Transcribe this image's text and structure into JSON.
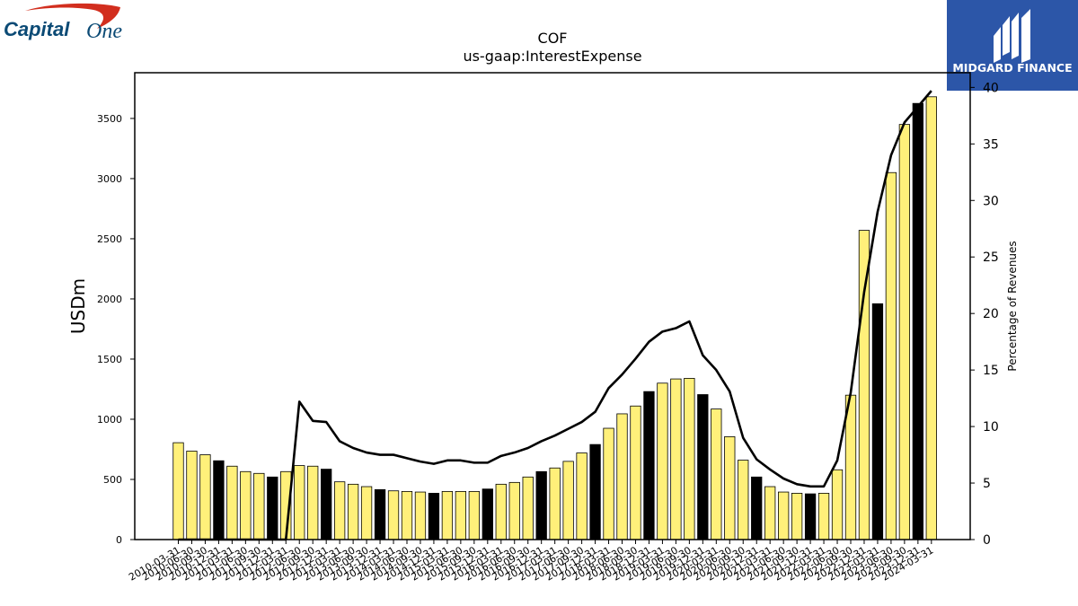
{
  "brand": {
    "left_logo_text_a": "Capital",
    "left_logo_text_b": "One",
    "right_logo_text": "MIDGARD FINANCE",
    "left_logo_color": "#0b4a75",
    "swoosh_color": "#d22e1e",
    "right_logo_bg": "#2c56a8"
  },
  "chart_data": {
    "type": "bar",
    "title": "COF",
    "subtitle": "us-gaap:InterestExpense",
    "ylabel": "USDm",
    "y2label": "Percentage of Revenues",
    "ylim": [
      0,
      3880
    ],
    "y2lim": [
      0,
      41.3
    ],
    "yticks": [
      0,
      500,
      1000,
      1500,
      2000,
      2500,
      3000,
      3500
    ],
    "y2ticks": [
      0,
      5,
      10,
      15,
      20,
      25,
      30,
      35,
      40
    ],
    "grid": false,
    "categories": [
      "2010-03-31",
      "2010-06-30",
      "2010-09-30",
      "2010-12-31",
      "2011-03-31",
      "2011-06-30",
      "2011-09-30",
      "2011-12-31",
      "2012-03-31",
      "2012-06-30",
      "2012-09-30",
      "2012-12-31",
      "2013-03-31",
      "2013-06-30",
      "2013-09-30",
      "2013-12-31",
      "2014-03-31",
      "2014-06-30",
      "2014-09-30",
      "2014-12-31",
      "2015-03-31",
      "2015-06-30",
      "2015-09-30",
      "2015-12-31",
      "2016-03-31",
      "2016-06-30",
      "2016-09-30",
      "2016-12-31",
      "2017-03-31",
      "2017-06-30",
      "2017-09-30",
      "2017-12-31",
      "2018-03-31",
      "2018-06-30",
      "2018-09-30",
      "2018-12-31",
      "2019-03-31",
      "2019-06-30",
      "2019-09-30",
      "2019-12-31",
      "2020-03-31",
      "2020-06-30",
      "2020-09-30",
      "2020-12-31",
      "2021-03-31",
      "2021-06-30",
      "2021-09-30",
      "2021-12-31",
      "2022-03-31",
      "2022-06-30",
      "2022-09-30",
      "2022-12-31",
      "2023-03-31",
      "2023-06-30",
      "2023-09-30",
      "2023-12-31",
      "2024-03-31"
    ],
    "series": [
      {
        "values": [
          805,
          735,
          705,
          655,
          610,
          565,
          550,
          520,
          565,
          615,
          610,
          585,
          480,
          460,
          440,
          415,
          405,
          400,
          395,
          385,
          400,
          400,
          400,
          420,
          460,
          475,
          520,
          565,
          595,
          650,
          720,
          790,
          925,
          1045,
          1110,
          1230,
          1300,
          1335,
          1340,
          1205,
          1085,
          855,
          660,
          520,
          440,
          395,
          385,
          380,
          385,
          580,
          1200,
          2570,
          1960,
          3050,
          3450,
          3625,
          3680
        ],
        "colors": [
          "yellow",
          "yellow",
          "yellow",
          "black",
          "yellow",
          "yellow",
          "yellow",
          "black",
          "yellow",
          "yellow",
          "yellow",
          "black",
          "yellow",
          "yellow",
          "yellow",
          "black",
          "yellow",
          "yellow",
          "yellow",
          "black",
          "yellow",
          "yellow",
          "yellow",
          "black",
          "yellow",
          "yellow",
          "yellow",
          "black",
          "yellow",
          "yellow",
          "yellow",
          "black",
          "yellow",
          "yellow",
          "yellow",
          "black",
          "yellow",
          "yellow",
          "yellow",
          "black",
          "yellow",
          "yellow",
          "yellow",
          "black",
          "yellow",
          "yellow",
          "yellow",
          "black",
          "yellow",
          "yellow",
          "yellow",
          "yellow",
          "black",
          "yellow",
          "yellow",
          "black",
          "yellow"
        ]
      },
      {
        "axis": "right",
        "values": [
          0,
          0,
          0,
          0,
          0,
          0,
          0,
          0,
          0,
          12.2,
          10.5,
          10.4,
          8.7,
          8.1,
          7.7,
          7.5,
          7.5,
          7.2,
          6.9,
          6.7,
          7.0,
          7.0,
          6.8,
          6.8,
          7.4,
          7.7,
          8.1,
          8.7,
          9.2,
          9.8,
          10.4,
          11.3,
          13.4,
          14.6,
          16.0,
          17.5,
          18.4,
          18.7,
          19.3,
          16.3,
          15.0,
          13.1,
          9.0,
          7.1,
          6.2,
          5.4,
          4.9,
          4.7,
          4.7,
          7.0,
          13.0,
          21.9,
          29.0,
          34.0,
          36.9,
          38.3,
          39.7
        ]
      }
    ],
    "bar_colors": {
      "yellow": "#fff07a",
      "black": "#000000"
    },
    "line_color": "#000000"
  }
}
